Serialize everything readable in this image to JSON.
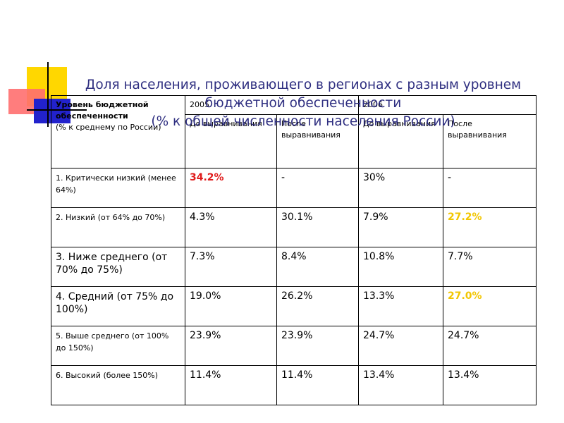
{
  "title": "Доля населения, проживающего в регионах с разным уровнем бюджетной обеспеченности",
  "subtitle": "(% к общей численности населения России)",
  "table": {
    "header": {
      "col0_title": "Уровень бюджетной обеспеченности",
      "col0_note": "(% к среднему по России)",
      "years": [
        "2005",
        "2006"
      ],
      "sub": [
        "До выравнивания",
        "После выравнивания",
        "До выравнивания",
        "После выравнивания"
      ]
    },
    "rows": [
      [
        "1. Критически низкий (менее 64%)",
        "34.2%",
        "-",
        "30%",
        "-"
      ],
      [
        "2. Низкий (от 64% до 70%)",
        "4.3%",
        "30.1%",
        "7.9%",
        "27.2%"
      ],
      [
        "3. Ниже среднего (от 70% до 75%)",
        "7.3%",
        "8.4%",
        "10.8%",
        "7.7%"
      ],
      [
        "4. Средний (от 75% до 100%)",
        "19.0%",
        "26.2%",
        "13.3%",
        "27.0%"
      ],
      [
        "5. Выше среднего (от 100% до 150%)",
        "23.9%",
        "23.9%",
        "24.7%",
        "24.7%"
      ],
      [
        "6. Высокий (более 150%)",
        "11.4%",
        "11.4%",
        "13.4%",
        "13.4%"
      ]
    ]
  }
}
